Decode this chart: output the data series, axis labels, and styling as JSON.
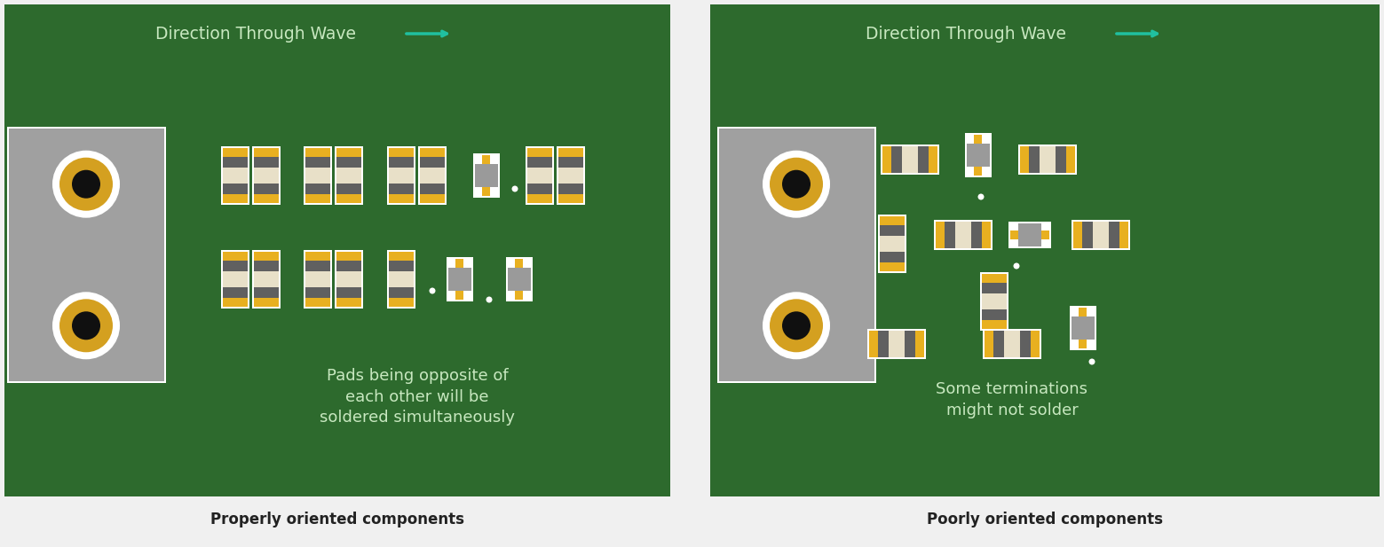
{
  "panel_bg": "#f0f0f0",
  "pcb_green": "#2d6a2d",
  "cream": "#e8e0c8",
  "gray_body": "#9a9a9a",
  "dark_gray": "#606060",
  "yellow_pad": "#e8b020",
  "white_outline": "#ffffff",
  "teal": "#20c0a0",
  "text_green": "#c8e8c0",
  "text_dark": "#222222",
  "connector_gray": "#a0a0a0",
  "left_title": "Direction Through Wave",
  "left_desc": "Pads being opposite of\neach other will be\nsoldered simultaneously",
  "left_label": "Properly oriented components",
  "right_title": "Direction Through Wave",
  "right_desc": "Some terminations\nmight not solder",
  "right_label": "Poorly oriented components",
  "L_board": [
    5,
    5,
    750,
    555
  ],
  "R_board": [
    800,
    5,
    754,
    555
  ],
  "arrow_teal": "#20c0a0"
}
